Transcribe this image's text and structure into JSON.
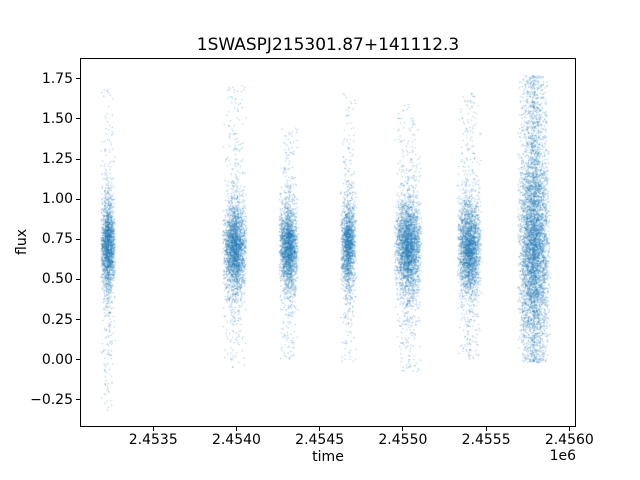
{
  "chart_data": {
    "type": "scatter",
    "title": "1SWASPJ215301.87+141112.3",
    "xlabel": "time",
    "ylabel": "flux",
    "x_offset_label": "1e6",
    "xlim": [
      2453060,
      2456040
    ],
    "ylim": [
      -0.42,
      1.88
    ],
    "x_ticks": [
      2453500,
      2454000,
      2454500,
      2455000,
      2455500,
      2456000
    ],
    "x_tick_labels": [
      "2.4535",
      "2.4540",
      "2.4545",
      "2.4550",
      "2.4555",
      "2.4560"
    ],
    "y_ticks": [
      -0.25,
      0.0,
      0.25,
      0.5,
      0.75,
      1.0,
      1.25,
      1.5,
      1.75
    ],
    "y_tick_labels": [
      "−0.25",
      "0.00",
      "0.25",
      "0.50",
      "0.75",
      "1.00",
      "1.25",
      "1.50",
      "1.75"
    ],
    "grid": false,
    "legend": null,
    "marker_color": "#1f77b4",
    "marker_alpha": 0.45,
    "marker_size_px": 1,
    "description": "SuperWASP light curve: seven vertical clusters of observations (observing seasons) of flux vs. time, core flux near 0.7, outliers spanning about -0.33 to 1.78",
    "clusters": [
      {
        "x_center": 2453220,
        "x_halfwidth": 45,
        "n_points": 2000,
        "flux_mean": 0.72,
        "flux_sd": 0.13,
        "core_frac": 0.75,
        "mid_frac": 0.17,
        "flux_min": -0.33,
        "flux_max": 1.7
      },
      {
        "x_center": 2453985,
        "x_halfwidth": 75,
        "n_points": 2600,
        "flux_mean": 0.7,
        "flux_sd": 0.13,
        "core_frac": 0.78,
        "mid_frac": 0.15,
        "flux_min": -0.05,
        "flux_max": 1.72
      },
      {
        "x_center": 2454310,
        "x_halfwidth": 60,
        "n_points": 2200,
        "flux_mean": 0.7,
        "flux_sd": 0.12,
        "core_frac": 0.78,
        "mid_frac": 0.15,
        "flux_min": 0.0,
        "flux_max": 1.45
      },
      {
        "x_center": 2454670,
        "x_halfwidth": 50,
        "n_points": 1700,
        "flux_mean": 0.72,
        "flux_sd": 0.13,
        "core_frac": 0.76,
        "mid_frac": 0.16,
        "flux_min": -0.02,
        "flux_max": 1.68
      },
      {
        "x_center": 2455030,
        "x_halfwidth": 85,
        "n_points": 2900,
        "flux_mean": 0.7,
        "flux_sd": 0.14,
        "core_frac": 0.75,
        "mid_frac": 0.17,
        "flux_min": -0.08,
        "flux_max": 1.6
      },
      {
        "x_center": 2455400,
        "x_halfwidth": 75,
        "n_points": 2600,
        "flux_mean": 0.7,
        "flux_sd": 0.14,
        "core_frac": 0.76,
        "mid_frac": 0.16,
        "flux_min": 0.0,
        "flux_max": 1.68
      },
      {
        "x_center": 2455790,
        "x_halfwidth": 100,
        "n_points": 5200,
        "flux_mean": 0.72,
        "flux_sd": 0.3,
        "core_frac": 0.62,
        "mid_frac": 0.0,
        "flux_min": -0.02,
        "flux_max": 1.78
      }
    ]
  }
}
